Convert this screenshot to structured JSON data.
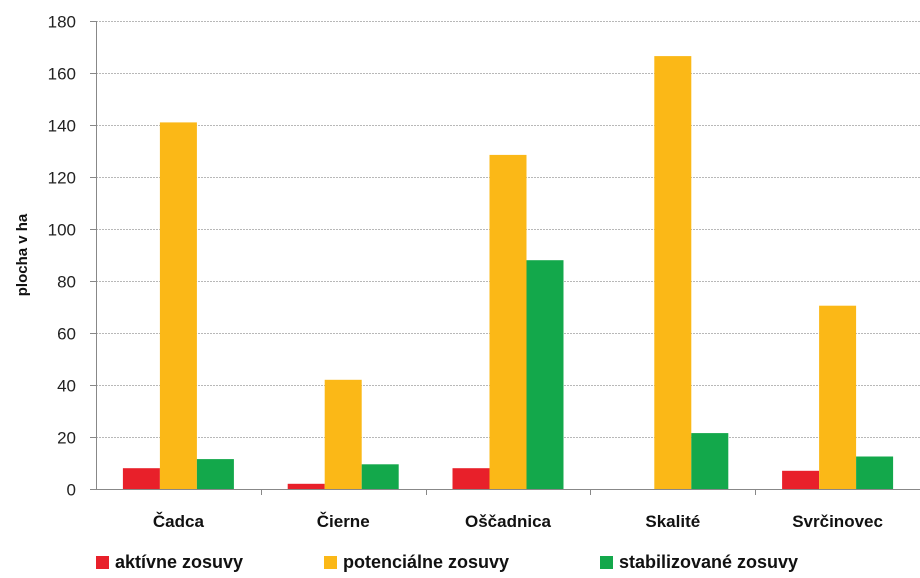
{
  "chart_data": {
    "type": "bar",
    "ylabel": "plocha v ha",
    "xlabel": "",
    "title": "",
    "ylim": [
      0,
      180
    ],
    "yticks": [
      0,
      20,
      40,
      60,
      80,
      100,
      120,
      140,
      160,
      180
    ],
    "grid": true,
    "legend_position": "bottom",
    "categories": [
      "Čadca",
      "Čierne",
      "Oščadnica",
      "Skalité",
      "Svrčinovec"
    ],
    "series": [
      {
        "name": "aktívne zosuvy",
        "color": "#e8202a",
        "values": [
          8,
          2,
          8,
          0,
          7
        ]
      },
      {
        "name": "potenciálne zosuvy",
        "color": "#fbb817",
        "values": [
          141,
          42,
          128.5,
          166.5,
          70.5
        ]
      },
      {
        "name": "stabilizované zosuvy",
        "color": "#13a84b",
        "values": [
          11.5,
          9.5,
          88,
          21.5,
          12.5
        ]
      }
    ]
  }
}
